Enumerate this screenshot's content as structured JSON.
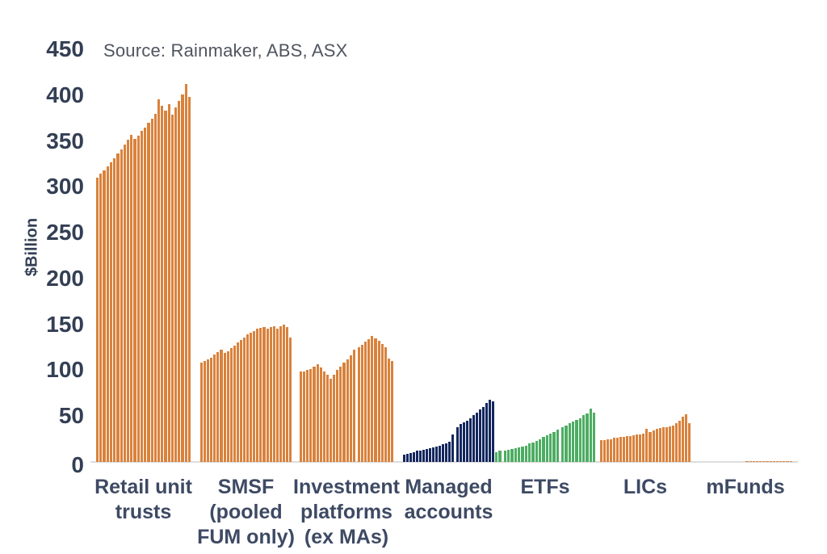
{
  "source_note": "Source: Rainmaker, ABS, ASX",
  "chart_data": {
    "type": "bar",
    "title": "",
    "xlabel": "",
    "ylabel": "$Billion",
    "ylim": [
      0,
      450
    ],
    "yticks": [
      0,
      50,
      100,
      150,
      200,
      250,
      300,
      350,
      400,
      450
    ],
    "grid": false,
    "legend": false,
    "source": "Source: Rainmaker, ABS, ASX",
    "colors": {
      "orange": "#d9823c",
      "navy": "#14275e",
      "green": "#4dad63",
      "axis_text": "#333f54",
      "category_text": "#3e4a64"
    },
    "groups": [
      {
        "label": "Retail unit trusts",
        "label_lines": [
          "Retail unit",
          "trusts"
        ],
        "color": "#d9823c",
        "gaps_after": [],
        "values": [
          310,
          314,
          318,
          322,
          327,
          331,
          336,
          341,
          346,
          351,
          357,
          352,
          356,
          361,
          365,
          370,
          374,
          380,
          395,
          388,
          383,
          390,
          379,
          387,
          394,
          401,
          412,
          398
        ]
      },
      {
        "label": "SMSF (pooled FUM only)",
        "label_lines": [
          "SMSF",
          "(pooled",
          "FUM only)"
        ],
        "color": "#d9823c",
        "gaps_after": [],
        "values": [
          108,
          110,
          112,
          114,
          117,
          120,
          122,
          119,
          121,
          124,
          127,
          130,
          133,
          136,
          139,
          141,
          143,
          145,
          146,
          147,
          145,
          147,
          148,
          145,
          148,
          150,
          147,
          136
        ]
      },
      {
        "label": "Investment platforms (ex MAs)",
        "label_lines": [
          "Investment",
          "platforms",
          "(ex MAs)"
        ],
        "color": "#d9823c",
        "gaps_after": [
          16
        ],
        "values": [
          99,
          99,
          100,
          101,
          104,
          107,
          103,
          99,
          95,
          91,
          95,
          100,
          104,
          108,
          112,
          116,
          122,
          125,
          128,
          131,
          134,
          137,
          135,
          132,
          129,
          125,
          113,
          110
        ]
      },
      {
        "label": "Managed accounts",
        "label_lines": [
          "Managed",
          "accounts"
        ],
        "color": "#14275e",
        "gaps_after": [
          15
        ],
        "values": [
          8,
          9,
          10,
          11,
          12,
          12,
          13,
          14,
          15,
          16,
          17,
          18,
          19,
          20,
          22,
          30,
          38,
          41,
          43,
          45,
          48,
          51,
          54,
          57,
          60,
          64,
          68,
          66
        ]
      },
      {
        "label": "ETFs",
        "label_lines": [
          "ETFs"
        ],
        "color": "#4dad63",
        "gaps_after": [
          1,
          17
        ],
        "values": [
          11,
          12,
          12,
          13,
          14,
          15,
          16,
          17,
          18,
          20,
          21,
          23,
          25,
          27,
          29,
          31,
          33,
          35,
          38,
          40,
          42,
          44,
          46,
          48,
          51,
          53,
          58,
          54
        ]
      },
      {
        "label": "LICs",
        "label_lines": [
          "LICs"
        ],
        "color": "#d9823c",
        "gaps_after": [],
        "values": [
          24,
          24,
          25,
          25,
          26,
          26,
          27,
          27,
          28,
          28,
          29,
          30,
          30,
          31,
          36,
          33,
          34,
          36,
          37,
          38,
          38,
          39,
          40,
          42,
          45,
          49,
          52,
          42
        ]
      },
      {
        "label": "mFunds",
        "label_lines": [
          "mFunds"
        ],
        "color": "#d9823c",
        "gaps_after": [],
        "values": [
          0,
          0,
          0,
          0,
          0,
          0,
          0,
          0,
          0,
          0,
          0,
          0,
          0,
          0,
          0.5,
          0.6,
          0.6,
          0.7,
          0.7,
          0.8,
          0.8,
          0.9,
          0.9,
          1,
          1,
          1.1,
          1.2,
          1.2
        ]
      }
    ]
  }
}
